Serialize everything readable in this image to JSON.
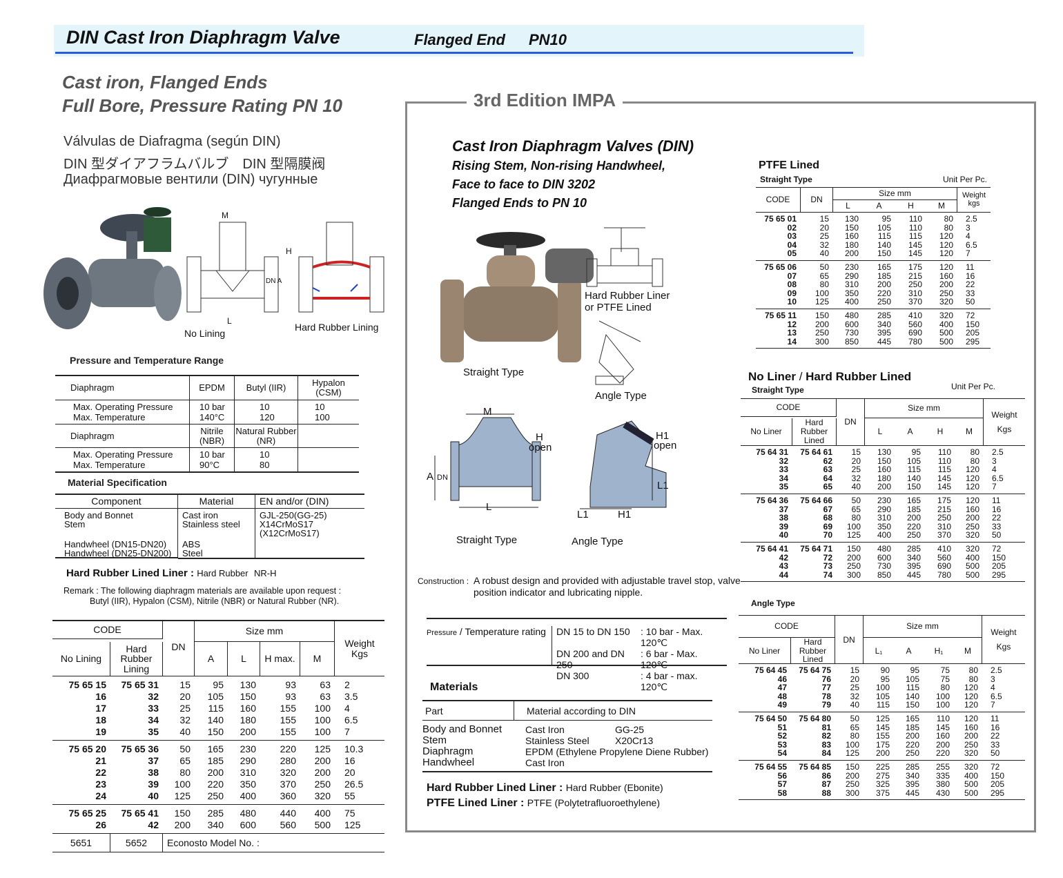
{
  "header": {
    "title": "DIN Cast Iron Diaphragm Valve",
    "end": "Flanged End",
    "rating": "PN10",
    "accent": "#2a5bd7",
    "background": "#e3f5fb"
  },
  "left": {
    "heading1": "Cast iron, Flanged Ends",
    "heading2": "Full Bore, Pressure Rating PN 10",
    "spanish": "Válvulas de Diafragma (según DIN)",
    "japanese_chinese": "DIN 型ダイアフラムバルブ　DIN 型隔膜阀",
    "russian": "Диафрагмовые вентили (DIN) чугунные",
    "diagram_labels": {
      "m": "M",
      "h": "H",
      "dna": "DN A",
      "l": "L",
      "no_lining": "No Lining",
      "hard_rubber": "Hard Rubber Lining"
    },
    "pt_title": "Pressure and Temperature Range",
    "pt": {
      "diaphragm": "Diaphragm",
      "epdm": "EPDM",
      "butyl": "Butyl (IIR)",
      "hypalon": "Hypalon (CSM)",
      "max_p": "Max. Operating Pressure",
      "max_t": "Max. Temperature",
      "epdm_p": "10 bar",
      "epdm_t": "140°C",
      "butyl_p": "10",
      "butyl_t": "120",
      "hyp_p": "10",
      "hyp_t": "100",
      "diaphragm2": "Diaphragm",
      "nbr": "Nitrile (NBR)",
      "nr": "Natural Rubber (NR)",
      "nbr_p": "10 bar",
      "nbr_t": "90°C",
      "nr_p": "10",
      "nr_t": "80"
    },
    "mat_title": "Material Specification",
    "mat": {
      "h_component": "Component",
      "h_material": "Material",
      "h_en": "EN and/or (DIN)",
      "r1c": "Body and Bonnet",
      "r1m": "Cast iron",
      "r1e": "GJL-250(GG-25)",
      "r2c": "Stem",
      "r2m": "Stainless steel",
      "r2e": "X14CrMoS17",
      "r2e2": "(X12CrMoS17)",
      "r3c": "Handwheel (DN15-DN20)",
      "r3m": "ABS",
      "r4c": "Handwheel (DN25-DN200)",
      "r4m": "Steel"
    },
    "liner_label": "Hard Rubber Lined Liner :",
    "liner_value": "Hard Rubber",
    "liner_code": "NR-H",
    "remark1": "Remark : The following diaphragm materials are available upon request :",
    "remark2": "Butyl (IIR), Hypalon (CSM), Nitrile (NBR) or Natural Rubber (NR).",
    "code_table": {
      "h_code": "CODE",
      "h_no_lining": "No Lining",
      "h_hard": "Hard Rubber Lining",
      "h_dn": "DN",
      "h_size": "Size mm",
      "h_a": "A",
      "h_l": "L",
      "h_h": "H max.",
      "h_m": "M",
      "h_weight": "Weight Kgs",
      "groups": [
        [
          [
            "75 65 15",
            "75 65 31",
            "15",
            "95",
            "130",
            "93",
            "63",
            "2"
          ],
          [
            "16",
            "32",
            "20",
            "105",
            "150",
            "93",
            "63",
            "3.5"
          ],
          [
            "17",
            "33",
            "25",
            "115",
            "160",
            "155",
            "100",
            "4"
          ],
          [
            "18",
            "34",
            "32",
            "140",
            "180",
            "155",
            "100",
            "6.5"
          ],
          [
            "19",
            "35",
            "40",
            "150",
            "200",
            "155",
            "100",
            "7"
          ]
        ],
        [
          [
            "75 65 20",
            "75 65 36",
            "50",
            "165",
            "230",
            "220",
            "125",
            "10.3"
          ],
          [
            "21",
            "37",
            "65",
            "185",
            "290",
            "280",
            "200",
            "16"
          ],
          [
            "22",
            "38",
            "80",
            "200",
            "310",
            "320",
            "200",
            "20"
          ],
          [
            "23",
            "39",
            "100",
            "220",
            "350",
            "370",
            "250",
            "26.5"
          ],
          [
            "24",
            "40",
            "125",
            "250",
            "400",
            "360",
            "320",
            "55"
          ]
        ],
        [
          [
            "75 65 25",
            "75 65 41",
            "150",
            "285",
            "480",
            "440",
            "400",
            "75"
          ],
          [
            "26",
            "42",
            "200",
            "340",
            "600",
            "560",
            "500",
            "125"
          ]
        ]
      ],
      "model_no_lining": "5651",
      "model_hard": "5652",
      "model_label": "Econosto Model No. :"
    }
  },
  "right": {
    "edition": "3rd Edition IMPA",
    "title": "Cast Iron Diaphragm Valves (DIN)",
    "sub1": "Rising Stem, Non-rising Handwheel,",
    "sub2": "Face to face to DIN 3202",
    "sub3": "Flanged Ends to PN 10",
    "img_labels": {
      "lined1": "Hard Rubber Liner",
      "lined2": "or PTFE Lined",
      "straight": "Straight Type",
      "angle": "Angle Type",
      "m": "M",
      "h": "H",
      "open": "open",
      "a": "A",
      "dn": "DN",
      "l": "L",
      "h1": "H1",
      "l1": "L1",
      "straight2": "Straight Type",
      "angle2": "Angle Type"
    },
    "construction_label": "Construction :",
    "construction1": "A robust design and provided with adjustable travel stop, valve",
    "construction2": "position indicator and lubricating nipple.",
    "pressure_label": "Pressure",
    "pressure_label2": "/ Temperature rating",
    "pressure": [
      [
        "DN  15 to DN 150",
        ": 10 bar - Max. 120℃"
      ],
      [
        "DN 200 and DN 250",
        ": 6 bar - Max. 120℃"
      ],
      [
        "DN 300",
        ": 4 bar - max. 120℃"
      ]
    ],
    "materials_title": "Materials",
    "materials_h_part": "Part",
    "materials_h_mat": "Material according to DIN",
    "materials": [
      [
        "Body and Bonnet",
        "Cast Iron",
        "GG-25"
      ],
      [
        "Stem",
        "Stainless Steel",
        "X20Cr13"
      ],
      [
        "Diaphragm",
        "EPDM (Ethylene Propylene Diene Rubber)",
        ""
      ],
      [
        "Handwheel",
        "Cast Iron",
        ""
      ]
    ],
    "hr_liner_label": "Hard Rubber Lined Liner :",
    "hr_liner_value": "Hard Rubber (Ebonite)",
    "ptfe_liner_label": "PTFE Lined  Liner :",
    "ptfe_liner_value": "PTFE (Polytetrafluoroethylene)",
    "ptfe": {
      "title": "PTFE Lined",
      "type": "Straight Type",
      "unit": "Unit Per Pc.",
      "h_code": "CODE",
      "h_dn": "DN",
      "h_size": "Size mm",
      "h_l": "L",
      "h_a": "A",
      "h_h": "H",
      "h_m": "M",
      "h_weight": "Weight kgs",
      "groups": [
        [
          [
            "75 65 01",
            "15",
            "130",
            "95",
            "110",
            "80",
            "2.5"
          ],
          [
            "02",
            "20",
            "150",
            "105",
            "110",
            "80",
            "3"
          ],
          [
            "03",
            "25",
            "160",
            "115",
            "115",
            "120",
            "4"
          ],
          [
            "04",
            "32",
            "180",
            "140",
            "145",
            "120",
            "6.5"
          ],
          [
            "05",
            "40",
            "200",
            "150",
            "145",
            "120",
            "7"
          ]
        ],
        [
          [
            "75 65 06",
            "50",
            "230",
            "165",
            "175",
            "120",
            "11"
          ],
          [
            "07",
            "65",
            "290",
            "185",
            "215",
            "160",
            "16"
          ],
          [
            "08",
            "80",
            "310",
            "200",
            "250",
            "200",
            "22"
          ],
          [
            "09",
            "100",
            "350",
            "220",
            "310",
            "250",
            "33"
          ],
          [
            "10",
            "125",
            "400",
            "250",
            "370",
            "320",
            "50"
          ]
        ],
        [
          [
            "75 65 11",
            "150",
            "480",
            "285",
            "410",
            "320",
            "72"
          ],
          [
            "12",
            "200",
            "600",
            "340",
            "560",
            "400",
            "150"
          ],
          [
            "13",
            "250",
            "730",
            "395",
            "690",
            "500",
            "205"
          ],
          [
            "14",
            "300",
            "850",
            "445",
            "780",
            "500",
            "295"
          ]
        ]
      ]
    },
    "noliner": {
      "title1": "No Liner",
      "slash": "/",
      "title2": "Hard Rubber Lined",
      "type": "Straight Type",
      "unit": "Unit Per Pc.",
      "h_code": "CODE",
      "h_no": "No Liner",
      "h_hard": "Hard Rubber Lined",
      "h_dn": "DN",
      "h_size": "Size mm",
      "h_l": "L",
      "h_a": "A",
      "h_h": "H",
      "h_m": "M",
      "h_weight": "Weight",
      "h_kgs": "Kgs",
      "groups": [
        [
          [
            "75 64 31",
            "75 64 61",
            "15",
            "130",
            "95",
            "110",
            "80",
            "2.5"
          ],
          [
            "32",
            "62",
            "20",
            "150",
            "105",
            "110",
            "80",
            "3"
          ],
          [
            "33",
            "63",
            "25",
            "160",
            "115",
            "115",
            "120",
            "4"
          ],
          [
            "34",
            "64",
            "32",
            "180",
            "140",
            "145",
            "120",
            "6.5"
          ],
          [
            "35",
            "65",
            "40",
            "200",
            "150",
            "145",
            "120",
            "7"
          ]
        ],
        [
          [
            "75 64 36",
            "75 64 66",
            "50",
            "230",
            "165",
            "175",
            "120",
            "11"
          ],
          [
            "37",
            "67",
            "65",
            "290",
            "185",
            "215",
            "160",
            "16"
          ],
          [
            "38",
            "68",
            "80",
            "310",
            "200",
            "250",
            "200",
            "22"
          ],
          [
            "39",
            "69",
            "100",
            "350",
            "220",
            "310",
            "250",
            "33"
          ],
          [
            "40",
            "70",
            "125",
            "400",
            "250",
            "370",
            "320",
            "50"
          ]
        ],
        [
          [
            "75 64 41",
            "75 64 71",
            "150",
            "480",
            "285",
            "410",
            "320",
            "72"
          ],
          [
            "42",
            "72",
            "200",
            "600",
            "340",
            "560",
            "400",
            "150"
          ],
          [
            "43",
            "73",
            "250",
            "730",
            "395",
            "690",
            "500",
            "205"
          ],
          [
            "44",
            "74",
            "300",
            "850",
            "445",
            "780",
            "500",
            "295"
          ]
        ]
      ]
    },
    "angle": {
      "type": "Angle Type",
      "h_code": "CODE",
      "h_no": "No Liner",
      "h_hard": "Hard Rubber Lined",
      "h_dn": "DN",
      "h_size": "Size mm",
      "h_l1": "L₁",
      "h_a": "A",
      "h_h1": "H₁",
      "h_m": "M",
      "h_weight": "Weight",
      "h_kgs": "Kgs",
      "groups": [
        [
          [
            "75 64 45",
            "75 64 75",
            "15",
            "90",
            "95",
            "75",
            "80",
            "2.5"
          ],
          [
            "46",
            "76",
            "20",
            "95",
            "105",
            "75",
            "80",
            "3"
          ],
          [
            "47",
            "77",
            "25",
            "100",
            "115",
            "80",
            "120",
            "4"
          ],
          [
            "48",
            "78",
            "32",
            "105",
            "140",
            "100",
            "120",
            "6.5"
          ],
          [
            "49",
            "79",
            "40",
            "115",
            "150",
            "100",
            "120",
            "7"
          ]
        ],
        [
          [
            "75 64 50",
            "75 64 80",
            "50",
            "125",
            "165",
            "110",
            "120",
            "11"
          ],
          [
            "51",
            "81",
            "65",
            "145",
            "185",
            "145",
            "160",
            "16"
          ],
          [
            "52",
            "82",
            "80",
            "155",
            "200",
            "160",
            "200",
            "22"
          ],
          [
            "53",
            "83",
            "100",
            "175",
            "220",
            "200",
            "250",
            "33"
          ],
          [
            "54",
            "84",
            "125",
            "200",
            "250",
            "220",
            "320",
            "50"
          ]
        ],
        [
          [
            "75 64 55",
            "75 64 85",
            "150",
            "225",
            "285",
            "255",
            "320",
            "72"
          ],
          [
            "56",
            "86",
            "200",
            "275",
            "340",
            "335",
            "400",
            "150"
          ],
          [
            "57",
            "87",
            "250",
            "325",
            "395",
            "380",
            "500",
            "205"
          ],
          [
            "58",
            "88",
            "300",
            "375",
            "445",
            "430",
            "500",
            "295"
          ]
        ]
      ]
    }
  }
}
